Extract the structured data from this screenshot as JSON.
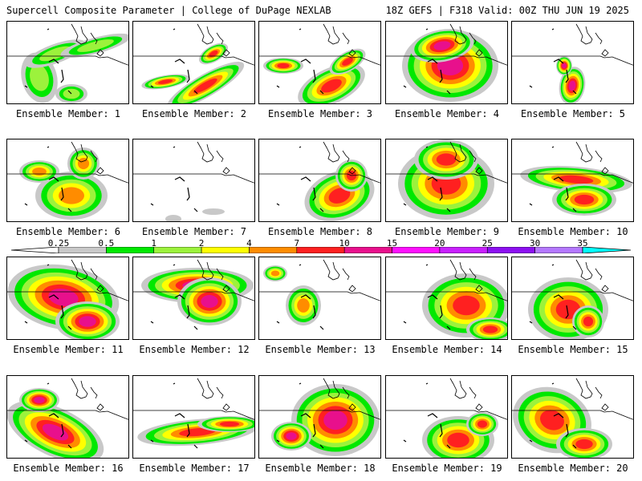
{
  "header": {
    "title_left": "Supercell Composite Parameter | College of DuPage NEXLAB",
    "title_right": "18Z GEFS | F318 Valid: 00Z THU JUN 19 2025"
  },
  "legend": {
    "ticks": [
      "0.25",
      "0.5",
      "1",
      "2",
      "4",
      "7",
      "10",
      "15",
      "20",
      "25",
      "30",
      "35"
    ],
    "colors": [
      "#c8c8c8",
      "#00e800",
      "#9cf23c",
      "#ffff00",
      "#ff8c00",
      "#ff2020",
      "#e8108c",
      "#ff10ff",
      "#c820ff",
      "#8c10f0",
      "#b478ff",
      "#00ffff"
    ]
  },
  "panels": [
    {
      "label": "Ensemble Member: 1",
      "level": 3
    },
    {
      "label": "Ensemble Member: 2",
      "level": 6
    },
    {
      "label": "Ensemble Member: 3",
      "level": 6
    },
    {
      "label": "Ensemble Member: 4",
      "level": 7
    },
    {
      "label": "Ensemble Member: 5",
      "level": 7
    },
    {
      "label": "Ensemble Member: 6",
      "level": 5
    },
    {
      "label": "Ensemble Member: 7",
      "level": 1
    },
    {
      "label": "Ensemble Member: 8",
      "level": 6
    },
    {
      "label": "Ensemble Member: 9",
      "level": 6
    },
    {
      "label": "Ensemble Member: 10",
      "level": 6
    },
    {
      "label": "Ensemble Member: 11",
      "level": 7
    },
    {
      "label": "Ensemble Member: 12",
      "level": 7
    },
    {
      "label": "Ensemble Member: 13",
      "level": 5
    },
    {
      "label": "Ensemble Member: 14",
      "level": 6
    },
    {
      "label": "Ensemble Member: 15",
      "level": 6
    },
    {
      "label": "Ensemble Member: 16",
      "level": 7
    },
    {
      "label": "Ensemble Member: 17",
      "level": 6
    },
    {
      "label": "Ensemble Member: 18",
      "level": 7
    },
    {
      "label": "Ensemble Member: 19",
      "level": 6
    },
    {
      "label": "Ensemble Member: 20",
      "level": 6
    }
  ]
}
